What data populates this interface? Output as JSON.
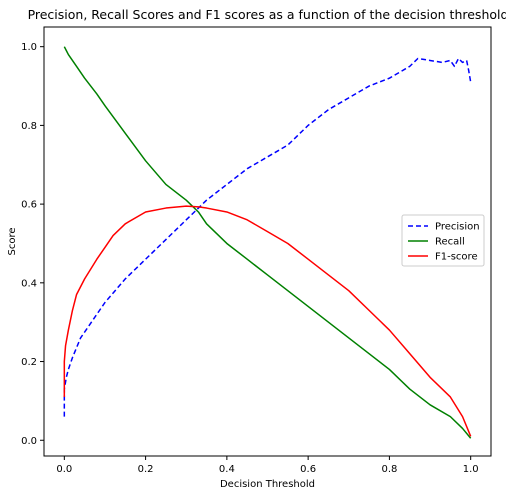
{
  "chart_data": {
    "type": "line",
    "title": "Precision, Recall Scores and F1 scores as a function of the decision threshold",
    "xlabel": "Decision Threshold",
    "ylabel": "Score",
    "xlim": [
      -0.05,
      1.05
    ],
    "ylim": [
      -0.04,
      1.05
    ],
    "xticks": [
      "0.0",
      "0.2",
      "0.4",
      "0.6",
      "0.8",
      "1.0"
    ],
    "yticks": [
      "0.0",
      "0.2",
      "0.4",
      "0.6",
      "0.8",
      "1.0"
    ],
    "grid": false,
    "legend_position": "center-right",
    "series": [
      {
        "name": "Precision",
        "color": "#0000ff",
        "style": "dashed",
        "x": [
          0.0,
          0.0,
          0.005,
          0.01,
          0.02,
          0.04,
          0.06,
          0.08,
          0.1,
          0.15,
          0.2,
          0.25,
          0.3,
          0.33,
          0.35,
          0.4,
          0.45,
          0.5,
          0.55,
          0.6,
          0.65,
          0.7,
          0.75,
          0.8,
          0.85,
          0.87,
          0.9,
          0.93,
          0.95,
          0.96,
          0.97,
          0.98,
          0.99,
          0.995,
          1.0
        ],
        "y": [
          0.06,
          0.13,
          0.16,
          0.18,
          0.21,
          0.26,
          0.29,
          0.32,
          0.35,
          0.41,
          0.46,
          0.51,
          0.56,
          0.59,
          0.61,
          0.65,
          0.69,
          0.72,
          0.75,
          0.8,
          0.84,
          0.87,
          0.9,
          0.92,
          0.95,
          0.97,
          0.965,
          0.96,
          0.965,
          0.95,
          0.97,
          0.96,
          0.965,
          0.94,
          0.91
        ]
      },
      {
        "name": "Recall",
        "color": "#008000",
        "style": "solid",
        "x": [
          0.0,
          0.005,
          0.01,
          0.03,
          0.05,
          0.08,
          0.1,
          0.15,
          0.2,
          0.25,
          0.3,
          0.33,
          0.35,
          0.4,
          0.45,
          0.5,
          0.55,
          0.6,
          0.65,
          0.7,
          0.75,
          0.8,
          0.85,
          0.9,
          0.95,
          0.98,
          1.0
        ],
        "y": [
          1.0,
          0.99,
          0.98,
          0.95,
          0.92,
          0.88,
          0.85,
          0.78,
          0.71,
          0.65,
          0.61,
          0.58,
          0.55,
          0.5,
          0.46,
          0.42,
          0.38,
          0.34,
          0.3,
          0.26,
          0.22,
          0.18,
          0.13,
          0.09,
          0.06,
          0.03,
          0.005
        ]
      },
      {
        "name": "F1-score",
        "color": "#ff0000",
        "style": "solid",
        "x": [
          0.0,
          0.0,
          0.003,
          0.01,
          0.02,
          0.03,
          0.05,
          0.08,
          0.1,
          0.12,
          0.15,
          0.2,
          0.25,
          0.3,
          0.33,
          0.35,
          0.4,
          0.45,
          0.5,
          0.55,
          0.6,
          0.65,
          0.7,
          0.75,
          0.8,
          0.85,
          0.9,
          0.95,
          0.98,
          1.0
        ],
        "y": [
          0.11,
          0.2,
          0.24,
          0.28,
          0.33,
          0.37,
          0.41,
          0.46,
          0.49,
          0.52,
          0.55,
          0.58,
          0.59,
          0.595,
          0.593,
          0.59,
          0.58,
          0.56,
          0.53,
          0.5,
          0.46,
          0.42,
          0.38,
          0.33,
          0.28,
          0.22,
          0.16,
          0.11,
          0.06,
          0.01
        ]
      }
    ]
  }
}
